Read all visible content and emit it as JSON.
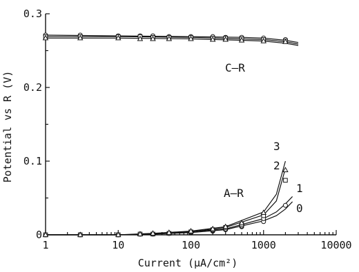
{
  "chart_data": {
    "type": "scatter",
    "xlabel": "Current (µA/cm²)",
    "ylabel": "Potential vs R (V)",
    "x_scale": "log",
    "xlim": [
      1,
      10000
    ],
    "ylim": [
      0,
      0.3
    ],
    "x_ticks": [
      "1",
      "10",
      "100",
      "1000",
      "10000"
    ],
    "y_ticks": [
      "0",
      "0.1",
      "0.2",
      "0.3"
    ],
    "grid": false,
    "legend": "none",
    "annotations": [
      "C–R",
      "A–R",
      "3",
      "2",
      "1",
      "0"
    ],
    "cr_series": [
      {
        "name": "0",
        "marker": "circle",
        "x": [
          1,
          3,
          10,
          20,
          30,
          50,
          100,
          200,
          300,
          500,
          1000,
          2000
        ],
        "y": [
          0.271,
          0.271,
          0.27,
          0.27,
          0.27,
          0.269,
          0.269,
          0.269,
          0.268,
          0.268,
          0.267,
          0.265
        ]
      },
      {
        "name": "1",
        "marker": "square",
        "x": [
          1,
          3,
          10,
          20,
          30,
          50,
          100,
          200,
          300,
          500,
          1000,
          2000
        ],
        "y": [
          0.269,
          0.269,
          0.269,
          0.269,
          0.268,
          0.268,
          0.268,
          0.267,
          0.267,
          0.266,
          0.265,
          0.263
        ]
      },
      {
        "name": "2",
        "marker": "triangle",
        "x": [
          1,
          3,
          10,
          20,
          30,
          50,
          100,
          200,
          300,
          500,
          1000,
          2000
        ],
        "y": [
          0.267,
          0.267,
          0.267,
          0.266,
          0.266,
          0.266,
          0.266,
          0.265,
          0.265,
          0.264,
          0.263,
          0.262
        ]
      }
    ],
    "ar_series": [
      {
        "name": "0",
        "marker": "circle",
        "x": [
          1,
          3,
          10,
          20,
          30,
          50,
          100,
          200,
          300,
          500,
          1000,
          2000
        ],
        "y": [
          0.0,
          0.0,
          0.0,
          0.001,
          0.001,
          0.002,
          0.003,
          0.005,
          0.007,
          0.011,
          0.018,
          0.04
        ]
      },
      {
        "name": "1",
        "marker": "circle",
        "x": [
          1,
          3,
          10,
          20,
          30,
          50,
          100,
          200,
          300,
          500,
          1000
        ],
        "y": [
          0.0,
          0.0,
          0.0,
          0.001,
          0.001,
          0.002,
          0.004,
          0.006,
          0.008,
          0.012,
          0.022
        ]
      },
      {
        "name": "2",
        "marker": "square",
        "x": [
          1,
          3,
          10,
          20,
          30,
          50,
          100,
          200,
          300,
          500,
          1000,
          2000
        ],
        "y": [
          0.0,
          0.0,
          0.0,
          0.001,
          0.001,
          0.002,
          0.004,
          0.007,
          0.01,
          0.014,
          0.026,
          0.074
        ]
      },
      {
        "name": "3",
        "marker": "triangle",
        "x": [
          1,
          3,
          10,
          20,
          30,
          50,
          100,
          200,
          300,
          500,
          1000,
          2000
        ],
        "y": [
          0.0,
          0.0,
          0.0,
          0.001,
          0.002,
          0.003,
          0.005,
          0.008,
          0.011,
          0.016,
          0.03,
          0.088
        ]
      }
    ],
    "ar_curves": [
      {
        "name": "0",
        "x": [
          1,
          10,
          30,
          100,
          300,
          1000,
          1500,
          2000,
          2500
        ],
        "y": [
          0.0,
          0.0,
          0.001,
          0.003,
          0.007,
          0.019,
          0.026,
          0.035,
          0.045
        ]
      },
      {
        "name": "1",
        "x": [
          1,
          10,
          30,
          100,
          300,
          1000,
          1500,
          2000,
          2500
        ],
        "y": [
          0.0,
          0.0,
          0.001,
          0.004,
          0.008,
          0.022,
          0.031,
          0.042,
          0.052
        ]
      },
      {
        "name": "2",
        "x": [
          1,
          10,
          30,
          100,
          300,
          1000,
          1500,
          2000
        ],
        "y": [
          0.0,
          0.0,
          0.001,
          0.004,
          0.01,
          0.027,
          0.046,
          0.09
        ]
      },
      {
        "name": "3",
        "x": [
          1,
          10,
          30,
          100,
          300,
          1000,
          1500,
          2000
        ],
        "y": [
          0.0,
          0.0,
          0.002,
          0.005,
          0.011,
          0.031,
          0.055,
          0.1
        ]
      }
    ],
    "cr_curves": [
      {
        "name": "0",
        "x": [
          1,
          10,
          100,
          500,
          1000,
          2000,
          3000
        ],
        "y": [
          0.271,
          0.27,
          0.269,
          0.268,
          0.267,
          0.264,
          0.261
        ]
      },
      {
        "name": "1",
        "x": [
          1,
          10,
          100,
          500,
          1000,
          2000,
          3000
        ],
        "y": [
          0.269,
          0.269,
          0.268,
          0.266,
          0.265,
          0.262,
          0.259
        ]
      },
      {
        "name": "2",
        "x": [
          1,
          10,
          100,
          500,
          1000,
          2000,
          3000
        ],
        "y": [
          0.267,
          0.267,
          0.266,
          0.264,
          0.263,
          0.26,
          0.257
        ]
      }
    ]
  }
}
